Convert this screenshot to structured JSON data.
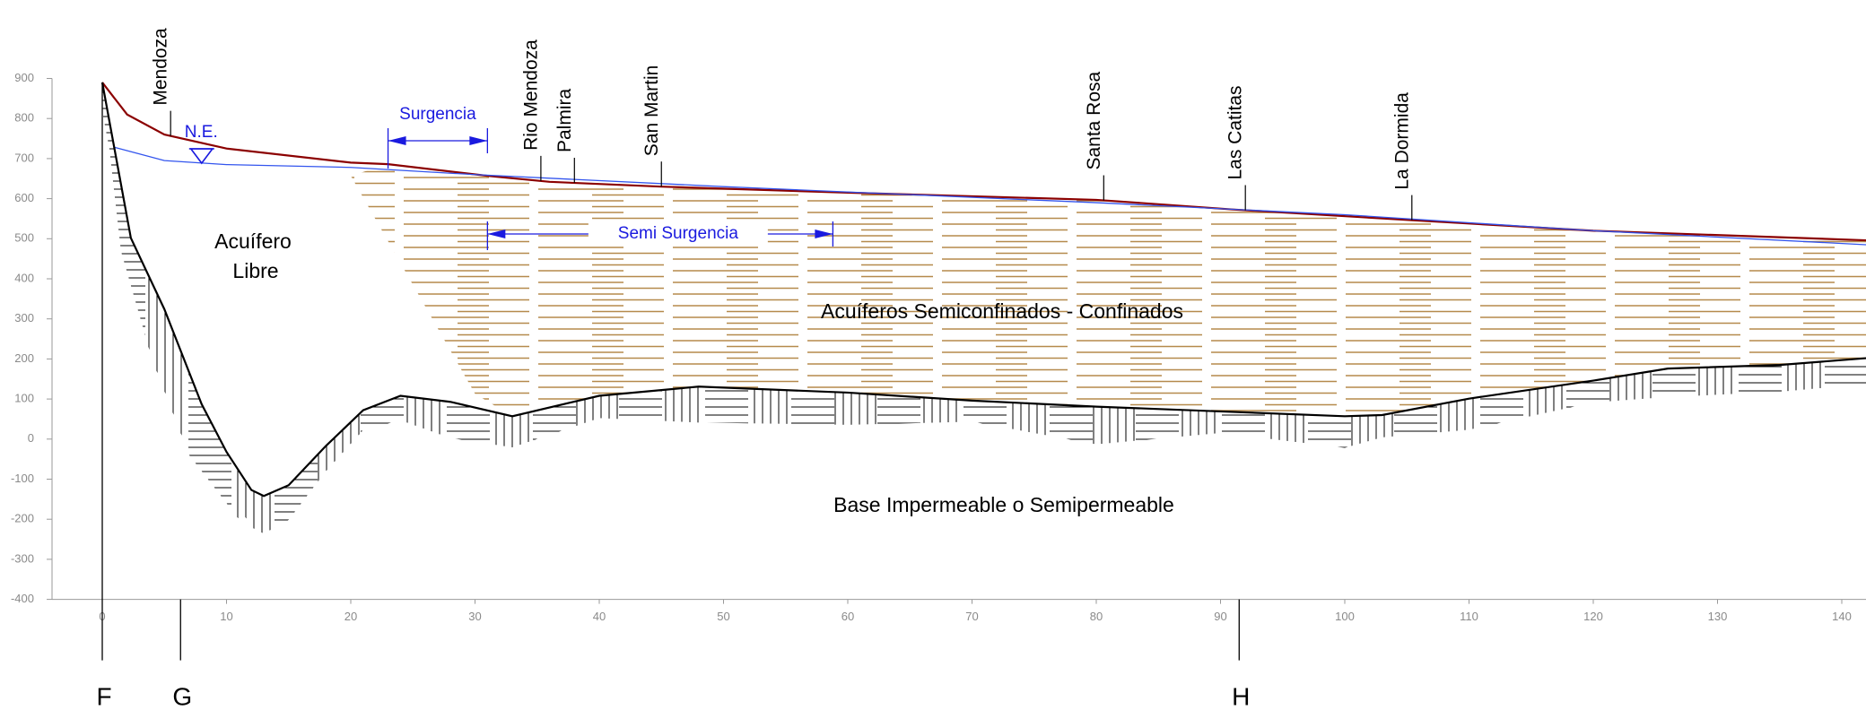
{
  "chart_data": {
    "type": "line",
    "xlim": [
      0,
      142
    ],
    "ylim": [
      -400,
      900
    ],
    "xticks": [
      0,
      10,
      20,
      30,
      40,
      50,
      60,
      70,
      80,
      90,
      100,
      110,
      120,
      130,
      140
    ],
    "yticks": [
      -400,
      -300,
      -200,
      -100,
      0,
      100,
      200,
      300,
      400,
      500,
      600,
      700,
      800,
      900
    ],
    "series": [
      {
        "color": "#8b0000",
        "x": [
          0,
          2,
          5,
          10,
          20,
          23,
          31,
          36,
          45,
          60,
          80,
          91,
          105,
          120,
          142
        ],
        "values": [
          890,
          810,
          760,
          725,
          690,
          686,
          657,
          642,
          630,
          615,
          597,
          573,
          547,
          520,
          496
        ]
      },
      {
        "color": "#3355ee",
        "x": [
          1,
          5,
          10,
          20,
          30,
          50,
          80,
          100,
          120,
          142
        ],
        "values": [
          728,
          695,
          685,
          678,
          660,
          630,
          590,
          560,
          520,
          485
        ]
      },
      {
        "color": "#000000",
        "x": [
          0,
          2.3,
          5,
          8,
          10,
          12,
          13,
          15,
          18,
          21,
          24,
          28,
          33,
          40,
          48,
          60,
          70,
          80,
          90,
          100,
          103,
          110,
          120,
          126,
          135,
          142
        ],
        "values": [
          890,
          502,
          324,
          87,
          -32,
          -127,
          -142,
          -115,
          -17,
          72,
          108,
          93,
          57,
          108,
          131,
          116,
          96,
          81,
          69,
          57,
          60,
          101,
          146,
          176,
          185,
          202
        ]
      }
    ],
    "towns": [
      {
        "text": "Mendoza",
        "x": 5.5
      },
      {
        "text": "Rio Mendoza",
        "x": 35.3
      },
      {
        "text": "Palmira",
        "x": 38
      },
      {
        "text": "San Martin",
        "x": 45
      },
      {
        "text": "Santa Rosa",
        "x": 80.6
      },
      {
        "text": "Las Catitas",
        "x": 92
      },
      {
        "text": "La Dormida",
        "x": 105.4
      }
    ],
    "water_level": {
      "text": "N.E.",
      "x": 8
    },
    "ranges": [
      {
        "text": "Surgencia",
        "x": [
          23,
          31
        ]
      },
      {
        "text": "Semi Surgencia",
        "x": [
          31,
          58.8
        ]
      }
    ],
    "regions": [
      "Acuífero",
      "Libre",
      "Acuíferos Semiconfinados - Confinados",
      "Base Impermeable o Semipermeable"
    ],
    "sections": [
      {
        "text": "F",
        "x": 0
      },
      {
        "text": "G",
        "x": 6.3
      },
      {
        "text": "H",
        "x": 91.5
      }
    ]
  }
}
